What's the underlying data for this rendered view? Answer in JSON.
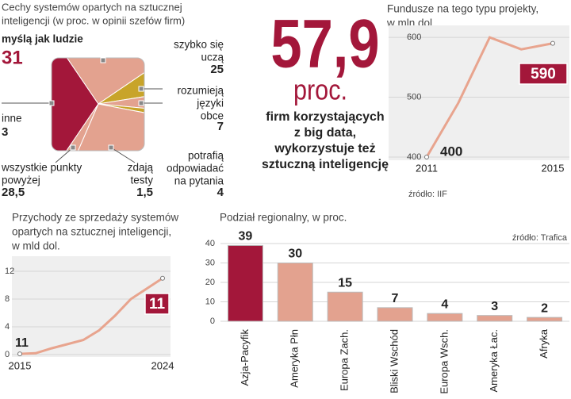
{
  "highlight": {
    "value": "57,9",
    "unit": "proc.",
    "text": [
      "firm korzystających",
      "z big data,",
      "wykorzystuje też",
      "sztuczną inteligencję"
    ]
  },
  "chart_data": [
    {
      "type": "pie",
      "title": [
        "Cechy systemów opartych na sztucznej",
        "inteligencji (w proc. w opinii szefów firm)"
      ],
      "categories": [
        [
          "myślą jak ludzie"
        ],
        [
          "szybko się",
          "uczą"
        ],
        [
          "rozumieją",
          "języki",
          "obce"
        ],
        [
          "potrafią",
          "odpowiadać",
          "na pytania"
        ],
        [
          "zdają",
          "testy"
        ],
        [
          "wszystkie punkty",
          "powyżej"
        ],
        [
          "inne"
        ]
      ],
      "values": [
        31,
        25,
        7,
        4,
        1.5,
        28.5,
        3
      ],
      "value_labels": [
        "31",
        "25",
        "7",
        "4",
        "1,5",
        "28,5",
        "3"
      ],
      "colors": [
        "#a3173a",
        "#e3a28f",
        "#c8a42a",
        "#e3a28f",
        "#c8a42a",
        "#e3a28f",
        "#e3a28f"
      ]
    },
    {
      "type": "line",
      "title": [
        "Fundusze na tego typu projekty,",
        "w mln dol."
      ],
      "x": [
        2011,
        2012,
        2013,
        2014,
        2015
      ],
      "values": [
        400,
        490,
        600,
        580,
        590
      ],
      "color": "#e8a48e",
      "xlim": [
        2011,
        2015
      ],
      "xticks": [
        2011,
        2015
      ],
      "ylim": [
        400,
        620
      ],
      "yticks": [
        400,
        500,
        600
      ],
      "grid": true,
      "source": "źródło: IIF"
    },
    {
      "type": "line",
      "title": [
        "Przychody ze sprzedaży systemów",
        "opartych na sztucznej inteligencji,",
        "w mld dol."
      ],
      "x": [
        2015,
        2016,
        2017,
        2018,
        2019,
        2020,
        2021,
        2022,
        2023,
        2024
      ],
      "values": [
        0.1,
        0.2,
        0.9,
        1.5,
        2.1,
        3.5,
        5.6,
        8,
        9.5,
        11
      ],
      "color": "#e8a48e",
      "xlim": [
        2015,
        2024
      ],
      "xticks": [
        2015,
        2024
      ],
      "ylim": [
        0,
        12
      ],
      "yticks": [
        0,
        4,
        8,
        12
      ],
      "grid": true,
      "annotations": [
        "11"
      ]
    },
    {
      "type": "bar",
      "title": "Podział regionalny, w proc.",
      "categories": [
        "Azja-Pacyfik",
        "Ameryka Płn",
        "Europa Zach.",
        "Bliski Wschód",
        "Europa Wsch.",
        "Ameryka Łac.",
        "Afryka"
      ],
      "values": [
        39,
        30,
        15,
        7,
        4,
        3,
        2
      ],
      "colors": [
        "#a3173a",
        "#e3a28f",
        "#e3a28f",
        "#e3a28f",
        "#e3a28f",
        "#e3a28f",
        "#e3a28f"
      ],
      "ylim": [
        0,
        40
      ],
      "yticks": [
        0,
        10,
        20,
        30,
        40
      ],
      "grid": true,
      "source": "źródło: Trafica"
    }
  ]
}
